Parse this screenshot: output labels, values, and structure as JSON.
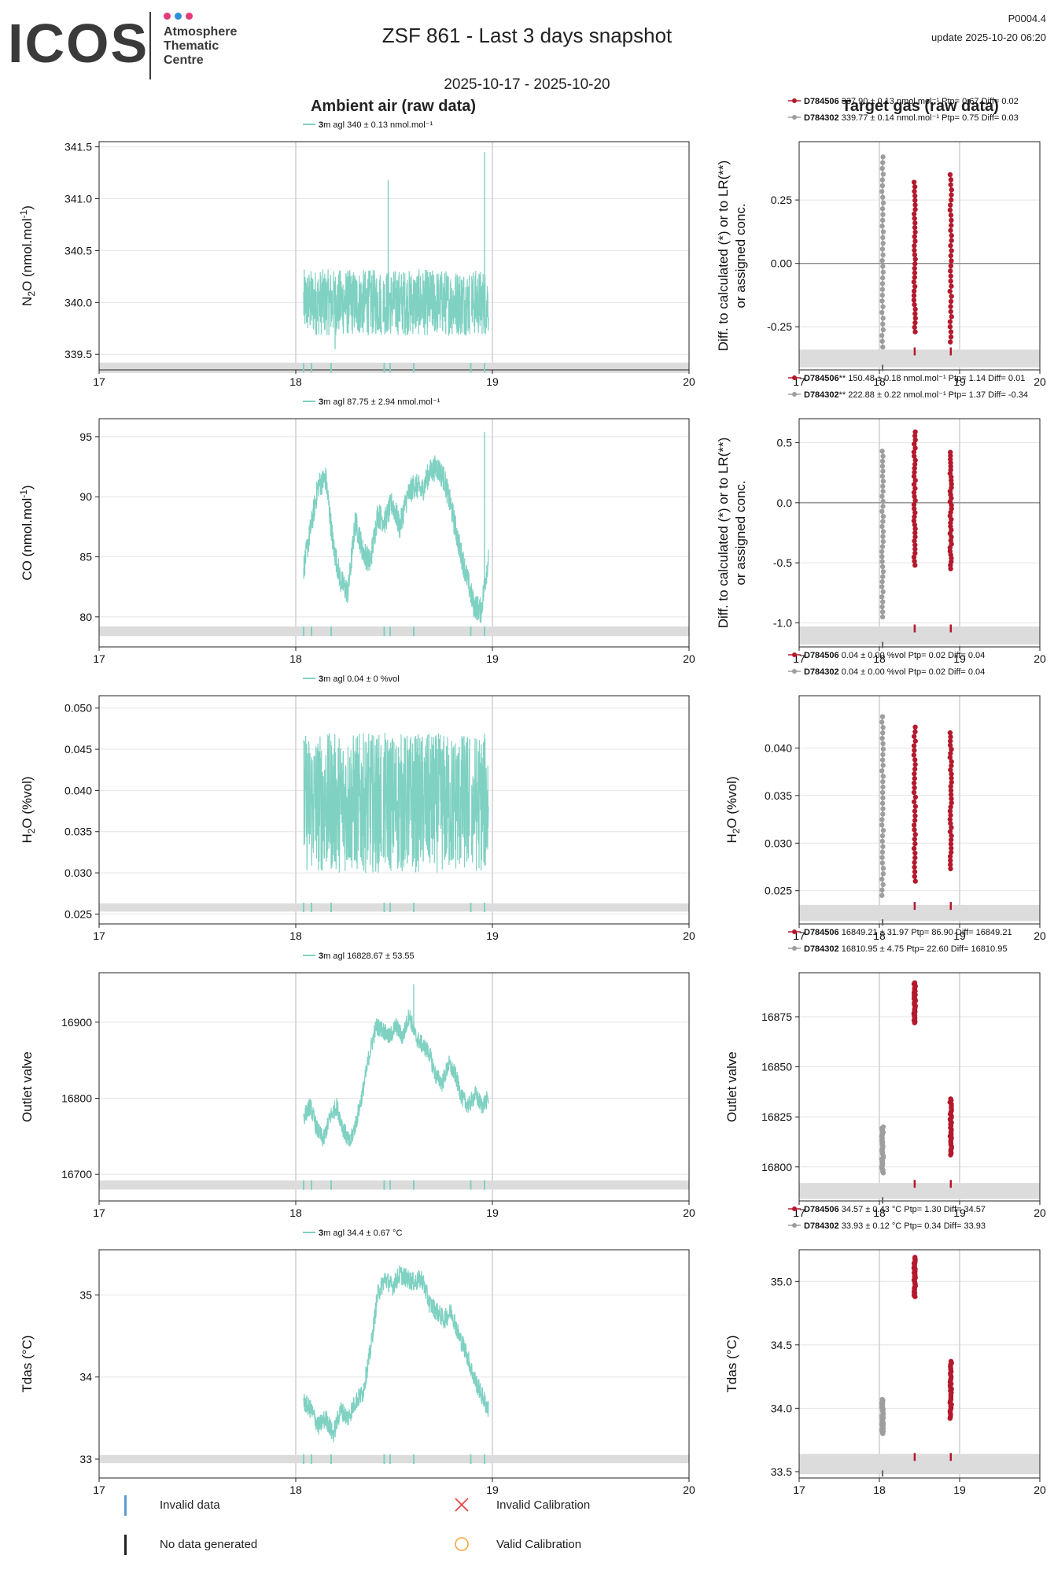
{
  "header": {
    "logo_text": "ICOS",
    "logo_subtitle": [
      "Atmosphere",
      "Thematic",
      "Centre"
    ],
    "title": "ZSF 861 - Last 3 days snapshot",
    "page_code": "P0004.4",
    "update": "update  2025-10-20 06:20",
    "date_range": "2025-10-17 - 2025-10-20",
    "ambient_title": "Ambient air (raw data)",
    "target_title": "Target gas (raw data)"
  },
  "colors": {
    "ambient": "#7fd1c2",
    "target1": "#b4192c",
    "target2": "#9e9e9e",
    "band": "#dcdcdc",
    "invalid_data": "#5b9bd5",
    "invalid_cal": "#e8383d",
    "valid_cal": "#f4a640"
  },
  "legend": {
    "invalid_data": "Invalid data",
    "no_data": "No data generated",
    "invalid_cal": "Invalid Calibration",
    "valid_cal": "Valid Calibration"
  },
  "chart_data": [
    {
      "type": "line",
      "panel": "ambient",
      "ylabel": "N2O (nmol.mol-1)",
      "legend": {
        "bold": "3",
        "text": "m agl 340 ± 0.13 nmol.mol⁻¹"
      },
      "xlim": [
        17,
        20
      ],
      "xticks": [
        17,
        18,
        19,
        20
      ],
      "ylim": [
        339.35,
        341.55
      ],
      "yticks": [
        339.5,
        340.0,
        340.5,
        341.0,
        341.5
      ],
      "yticklabels": [
        "339.5",
        "340.0",
        "340.5",
        "341.0",
        "341.5"
      ],
      "band": [
        339.32,
        339.42
      ],
      "series": {
        "x_start": 18.04,
        "x_end": 18.98,
        "smooth": [
          340.0,
          340.0,
          340.0,
          340.0,
          340.0
        ],
        "noise": 0.32,
        "gaps": [
          18.44,
          18.89
        ],
        "spikes": [
          [
            18.47,
            341.18
          ],
          [
            18.96,
            341.45
          ],
          [
            18.2,
            339.55
          ]
        ]
      }
    },
    {
      "type": "line",
      "panel": "ambient",
      "ylabel": "CO (nmol.mol-1)",
      "legend": {
        "bold": "3",
        "text": "m agl 87.75 ± 2.94 nmol.mol⁻¹"
      },
      "xlim": [
        17,
        20
      ],
      "xticks": [
        17,
        18,
        19,
        20
      ],
      "ylim": [
        77.5,
        96.5
      ],
      "yticks": [
        80,
        85,
        90,
        95
      ],
      "yticklabels": [
        "80",
        "85",
        "90",
        "95"
      ],
      "band": [
        78.4,
        79.2
      ],
      "series": {
        "x_start": 18.04,
        "x_end": 18.98,
        "smooth": [
          84.0,
          87.5,
          91.0,
          91.5,
          86.0,
          83.0,
          82.0,
          88.0,
          85.5,
          84.5,
          88.5,
          88.0,
          89.5,
          87.5,
          90.0,
          91.0,
          90.5,
          92.0,
          92.5,
          91.5,
          89.0,
          86.0,
          83.5,
          81.0,
          80.5,
          85.0
        ],
        "noise": 1.1,
        "gaps": [],
        "spikes": [
          [
            18.96,
            95.4
          ]
        ]
      }
    },
    {
      "type": "line",
      "panel": "ambient",
      "ylabel": "H2O (%vol)",
      "legend": {
        "bold": "3",
        "text": "m agl 0.04 ± 0 %vol"
      },
      "xlim": [
        17,
        20
      ],
      "xticks": [
        17,
        18,
        19,
        20
      ],
      "ylim": [
        0.0238,
        0.0515
      ],
      "yticks": [
        0.025,
        0.03,
        0.035,
        0.04,
        0.045,
        0.05
      ],
      "yticklabels": [
        "0.025",
        "0.030",
        "0.035",
        "0.040",
        "0.045",
        "0.050"
      ],
      "band": [
        0.0253,
        0.0263
      ],
      "series": {
        "x_start": 18.04,
        "x_end": 18.98,
        "smooth": [
          0.0385,
          0.0385,
          0.0385
        ],
        "noise": 0.0085,
        "gaps": [
          18.44,
          18.89
        ],
        "spikes": []
      }
    },
    {
      "type": "line",
      "panel": "ambient",
      "ylabel": "Outlet valve",
      "legend": {
        "bold": "3",
        "text": "m agl 16828.67 ± 53.55"
      },
      "xlim": [
        17,
        20
      ],
      "xticks": [
        17,
        18,
        19,
        20
      ],
      "ylim": [
        16665,
        16965
      ],
      "yticks": [
        16700,
        16800,
        16900
      ],
      "yticklabels": [
        "16700",
        "16800",
        "16900"
      ],
      "band": [
        16680,
        16692
      ],
      "series": {
        "x_start": 18.04,
        "x_end": 18.98,
        "smooth": [
          16775,
          16790,
          16760,
          16745,
          16775,
          16790,
          16760,
          16740,
          16770,
          16810,
          16860,
          16895,
          16890,
          16880,
          16895,
          16880,
          16910,
          16880,
          16870,
          16860,
          16830,
          16820,
          16845,
          16830,
          16800,
          16790,
          16805,
          16790,
          16800
        ],
        "noise": 12,
        "gaps": [],
        "spikes": [
          [
            18.6,
            16950
          ]
        ]
      }
    },
    {
      "type": "line",
      "panel": "ambient",
      "ylabel": "Tdas (°C)",
      "legend": {
        "bold": "3",
        "text": "m agl 34.4 ± 0.67 °C"
      },
      "xlim": [
        17,
        20
      ],
      "xticks": [
        17,
        18,
        19,
        20
      ],
      "ylim": [
        32.77,
        35.55
      ],
      "yticks": [
        33,
        34,
        35
      ],
      "yticklabels": [
        "33",
        "34",
        "35"
      ],
      "band": [
        32.95,
        33.05
      ],
      "series": {
        "x_start": 18.04,
        "x_end": 18.98,
        "smooth": [
          33.7,
          33.6,
          33.4,
          33.5,
          33.3,
          33.6,
          33.5,
          33.7,
          33.8,
          34.3,
          35.0,
          35.2,
          35.1,
          35.25,
          35.2,
          35.15,
          35.2,
          34.9,
          34.8,
          34.7,
          34.8,
          34.5,
          34.3,
          34.0,
          33.8,
          33.6
        ],
        "noise": 0.12,
        "gaps": [],
        "spikes": []
      }
    },
    {
      "type": "scatter",
      "panel": "target",
      "ylabel": [
        "Diff. to calculated (*) or to LR(**)",
        "or assigned conc."
      ],
      "legend": [
        {
          "name": "D784506",
          "text": " 337.90 ± 0.13 nmol.mol⁻¹ Ptp= 0.67 Diff= 0.02"
        },
        {
          "name": "D784302",
          "text": " 339.77 ± 0.14 nmol.mol⁻¹ Ptp= 0.75 Diff= 0.03"
        }
      ],
      "xlim": [
        17,
        20
      ],
      "xticks": [
        17,
        18,
        19,
        20
      ],
      "ylim": [
        -0.42,
        0.48
      ],
      "yticks": [
        -0.25,
        0.0,
        0.25
      ],
      "yticklabels": [
        "-0.25",
        "0.00",
        "0.25"
      ],
      "band": [
        -0.41,
        -0.34
      ],
      "zero_line": true,
      "clusters": [
        {
          "series": "D784302",
          "x": 18.04,
          "min": -0.33,
          "max": 0.42
        },
        {
          "series": "D784506",
          "x": 18.44,
          "min": -0.27,
          "max": 0.32
        },
        {
          "series": "D784506",
          "x": 18.89,
          "min": -0.31,
          "max": 0.35
        }
      ]
    },
    {
      "type": "scatter",
      "panel": "target",
      "ylabel": [
        "Diff. to calculated (*) or to LR(**)",
        "or assigned conc."
      ],
      "legend": [
        {
          "name": "D784506",
          "text": "** 150.48 ± 0.18 nmol.mol⁻¹ Ptp= 1.14 Diff= 0.01"
        },
        {
          "name": "D784302",
          "text": "** 222.88 ± 0.22 nmol.mol⁻¹ Ptp= 1.37 Diff= -0.34"
        }
      ],
      "xlim": [
        17,
        20
      ],
      "xticks": [
        17,
        18,
        19,
        20
      ],
      "ylim": [
        -1.2,
        0.7
      ],
      "yticks": [
        -1.0,
        -0.5,
        0.0,
        0.5
      ],
      "yticklabels": [
        "-1.0",
        "-0.5",
        "0.0",
        "0.5"
      ],
      "band": [
        -1.18,
        -1.03
      ],
      "zero_line": true,
      "clusters": [
        {
          "series": "D784302",
          "x": 18.04,
          "min": -0.95,
          "max": 0.43
        },
        {
          "series": "D784506",
          "x": 18.44,
          "min": -0.52,
          "max": 0.59
        },
        {
          "series": "D784506",
          "x": 18.89,
          "min": -0.55,
          "max": 0.42
        }
      ]
    },
    {
      "type": "scatter",
      "panel": "target",
      "ylabel": [
        "H2O (%vol)"
      ],
      "legend": [
        {
          "name": "D784506",
          "text": " 0.04 ± 0.00 %vol Ptp= 0.02 Diff= 0.04"
        },
        {
          "name": "D784302",
          "text": " 0.04 ± 0.00 %vol Ptp= 0.02 Diff= 0.04"
        }
      ],
      "xlim": [
        17,
        20
      ],
      "xticks": [
        17,
        18,
        19,
        20
      ],
      "ylim": [
        0.0215,
        0.0455
      ],
      "yticks": [
        0.025,
        0.03,
        0.035,
        0.04
      ],
      "yticklabels": [
        "0.025",
        "0.030",
        "0.035",
        "0.040"
      ],
      "band": [
        0.0218,
        0.0235
      ],
      "zero_line": false,
      "clusters": [
        {
          "series": "D784302",
          "x": 18.04,
          "min": 0.0245,
          "max": 0.0433
        },
        {
          "series": "D784506",
          "x": 18.44,
          "min": 0.026,
          "max": 0.0422
        },
        {
          "series": "D784506",
          "x": 18.89,
          "min": 0.0273,
          "max": 0.0416
        }
      ]
    },
    {
      "type": "scatter",
      "panel": "target",
      "ylabel": [
        "Outlet valve"
      ],
      "legend": [
        {
          "name": "D784506",
          "text": " 16849.21 ± 31.97  Ptp= 86.90 Diff= 16849.21"
        },
        {
          "name": "D784302",
          "text": " 16810.95 ± 4.75  Ptp= 22.60 Diff= 16810.95"
        }
      ],
      "xlim": [
        17,
        20
      ],
      "xticks": [
        17,
        18,
        19,
        20
      ],
      "ylim": [
        16783,
        16897
      ],
      "yticks": [
        16800,
        16825,
        16850,
        16875
      ],
      "yticklabels": [
        "16800",
        "16825",
        "16850",
        "16875"
      ],
      "band": [
        16784,
        16792
      ],
      "zero_line": false,
      "clusters": [
        {
          "series": "D784302",
          "x": 18.04,
          "min": 16797,
          "max": 16820
        },
        {
          "series": "D784506",
          "x": 18.44,
          "min": 16872,
          "max": 16892
        },
        {
          "series": "D784506",
          "x": 18.89,
          "min": 16806,
          "max": 16834
        }
      ]
    },
    {
      "type": "scatter",
      "panel": "target",
      "ylabel": [
        "Tdas (°C)"
      ],
      "legend": [
        {
          "name": "D784506",
          "text": " 34.57 ± 0.43 °C Ptp= 1.30 Diff= 34.57"
        },
        {
          "name": "D784302",
          "text": " 33.93 ± 0.12 °C Ptp= 0.34 Diff= 33.93"
        }
      ],
      "xlim": [
        17,
        20
      ],
      "xticks": [
        17,
        18,
        19,
        20
      ],
      "ylim": [
        33.45,
        35.25
      ],
      "yticks": [
        33.5,
        34.0,
        34.5,
        35.0
      ],
      "yticklabels": [
        "33.5",
        "34.0",
        "34.5",
        "35.0"
      ],
      "band": [
        33.48,
        33.64
      ],
      "zero_line": false,
      "clusters": [
        {
          "series": "D784302",
          "x": 18.04,
          "min": 33.8,
          "max": 34.07
        },
        {
          "series": "D784506",
          "x": 18.44,
          "min": 34.88,
          "max": 35.19
        },
        {
          "series": "D784506",
          "x": 18.89,
          "min": 33.92,
          "max": 34.37
        }
      ]
    }
  ],
  "rug_ticks_ambient": [
    18.04,
    18.08,
    18.18,
    18.45,
    18.48,
    18.6,
    18.89,
    18.96
  ],
  "rug_ticks_target": {
    "D784506": [
      18.44,
      18.89
    ],
    "D784302": [
      18.04
    ]
  }
}
